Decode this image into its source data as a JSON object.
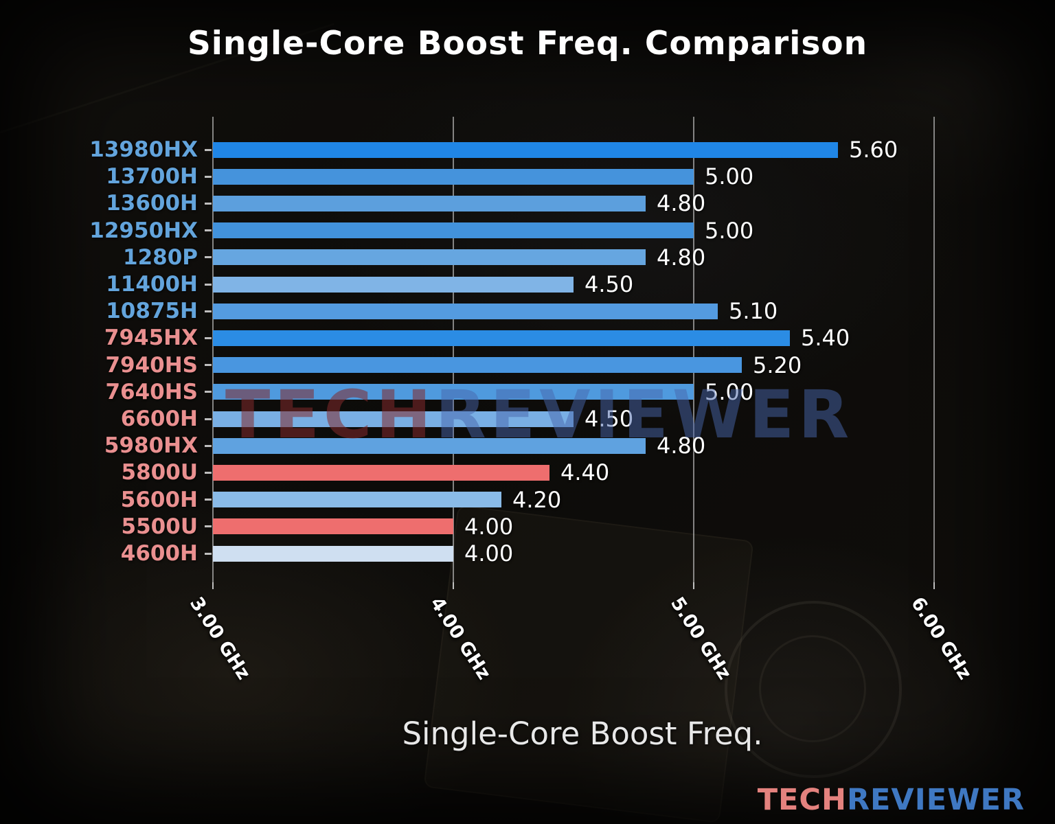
{
  "title": "Single-Core Boost Freq. Comparison",
  "watermark": {
    "tech": "TECH",
    "reviewer": "REVIEWER"
  },
  "logo": {
    "tech": "TECH",
    "reviewer": "REVIEWER"
  },
  "chart_data": {
    "type": "bar",
    "orientation": "horizontal",
    "title": "Single-Core Boost Freq. Comparison",
    "xlabel": "Single-Core Boost Freq.",
    "ylabel": "",
    "xlim": [
      3.0,
      6.0
    ],
    "grid": true,
    "legend": "none",
    "x_ticks": [
      {
        "value": 3.0,
        "label": "3.00 GHz"
      },
      {
        "value": 4.0,
        "label": "4.00 GHz"
      },
      {
        "value": 5.0,
        "label": "5.00 GHz"
      },
      {
        "value": 6.0,
        "label": "6.00 GHz"
      }
    ],
    "categories": [
      "13980HX",
      "13700H",
      "13600H",
      "12950HX",
      "1280P",
      "11400H",
      "10875H",
      "7945HX",
      "7940HS",
      "7640HS",
      "6600H",
      "5980HX",
      "5800U",
      "5600H",
      "5500U",
      "4600H"
    ],
    "values": [
      5.6,
      5.0,
      4.8,
      5.0,
      4.8,
      4.5,
      5.1,
      5.4,
      5.2,
      5.0,
      4.5,
      4.8,
      4.4,
      4.2,
      4.0,
      4.0
    ],
    "bars": [
      {
        "category": "13980HX",
        "value": 5.6,
        "value_label": "5.60",
        "bar_color": "#2086e6",
        "label_color": "#63a4dc"
      },
      {
        "category": "13700H",
        "value": 5.0,
        "value_label": "5.00",
        "bar_color": "#4593dc",
        "label_color": "#63a4dc"
      },
      {
        "category": "13600H",
        "value": 4.8,
        "value_label": "4.80",
        "bar_color": "#5c9fdd",
        "label_color": "#63a4dc"
      },
      {
        "category": "12950HX",
        "value": 5.0,
        "value_label": "5.00",
        "bar_color": "#4292dc",
        "label_color": "#63a4dc"
      },
      {
        "category": "1280P",
        "value": 4.8,
        "value_label": "4.80",
        "bar_color": "#66a6e0",
        "label_color": "#63a4dc"
      },
      {
        "category": "11400H",
        "value": 4.5,
        "value_label": "4.50",
        "bar_color": "#80b4e6",
        "label_color": "#63a4dc"
      },
      {
        "category": "10875H",
        "value": 5.1,
        "value_label": "5.10",
        "bar_color": "#549be0",
        "label_color": "#63a4dc"
      },
      {
        "category": "7945HX",
        "value": 5.4,
        "value_label": "5.40",
        "bar_color": "#2b8ce4",
        "label_color": "#ea9090"
      },
      {
        "category": "7940HS",
        "value": 5.2,
        "value_label": "5.20",
        "bar_color": "#4996e0",
        "label_color": "#ea9090"
      },
      {
        "category": "7640HS",
        "value": 5.0,
        "value_label": "5.00",
        "bar_color": "#4f9ade",
        "label_color": "#ea9090"
      },
      {
        "category": "6600H",
        "value": 4.5,
        "value_label": "4.50",
        "bar_color": "#79afe4",
        "label_color": "#ea9090"
      },
      {
        "category": "5980HX",
        "value": 4.8,
        "value_label": "4.80",
        "bar_color": "#5fa2e0",
        "label_color": "#ea9090"
      },
      {
        "category": "5800U",
        "value": 4.4,
        "value_label": "4.40",
        "bar_color": "#ee6e6e",
        "label_color": "#ea9090"
      },
      {
        "category": "5600H",
        "value": 4.2,
        "value_label": "4.20",
        "bar_color": "#8abbe8",
        "label_color": "#ea9090"
      },
      {
        "category": "5500U",
        "value": 4.0,
        "value_label": "4.00",
        "bar_color": "#ee6e6e",
        "label_color": "#ea9090"
      },
      {
        "category": "4600H",
        "value": 4.0,
        "value_label": "4.00",
        "bar_color": "#cfdff1",
        "label_color": "#ea9090"
      }
    ]
  }
}
